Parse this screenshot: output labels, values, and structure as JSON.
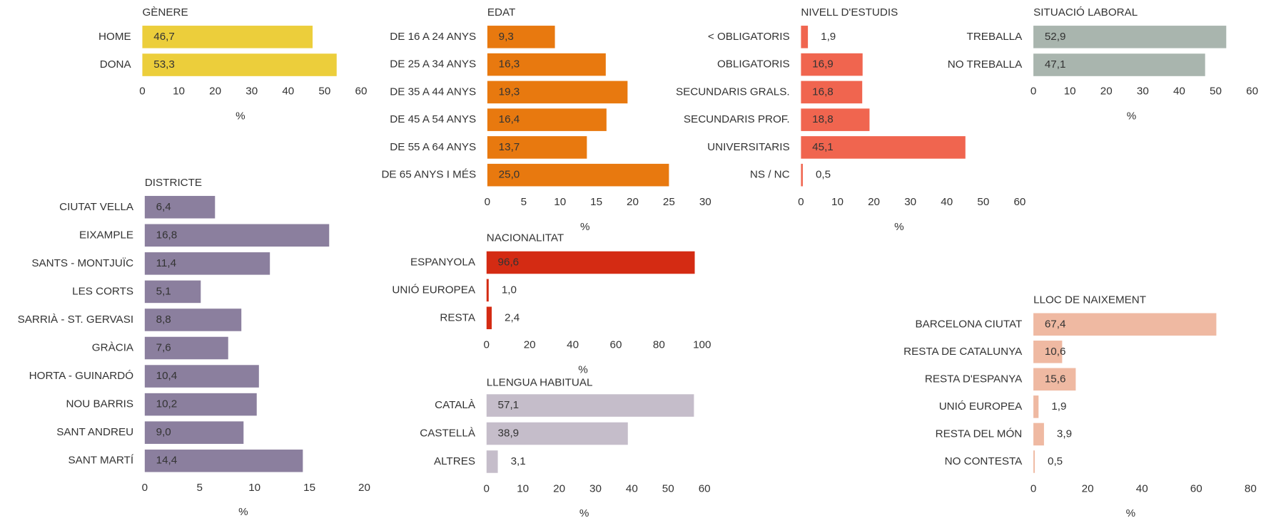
{
  "chart_data": [
    {
      "type": "bar",
      "title": "GÈNERE",
      "categories": [
        "HOME",
        "DONA"
      ],
      "values": [
        46.7,
        53.3
      ],
      "value_labels": [
        "46,7",
        "53,3"
      ],
      "color": "#ecce3b",
      "label_color": "#222222",
      "xlim": [
        0,
        60
      ],
      "xticks": [
        0,
        10,
        20,
        30,
        40,
        50,
        60
      ],
      "xlabel": "%"
    },
    {
      "type": "bar",
      "title": "EDAT",
      "categories": [
        "DE 16 A 24 ANYS",
        "DE 25 A 34 ANYS",
        "DE 35 A 44 ANYS",
        "DE 45 A 54 ANYS",
        "DE 55 A 64 ANYS",
        "DE 65 ANYS I MÉS"
      ],
      "values": [
        9.3,
        16.3,
        19.3,
        16.4,
        13.7,
        25.0
      ],
      "value_labels": [
        "9,3",
        "16,3",
        "19,3",
        "16,4",
        "13,7",
        "25,0"
      ],
      "color": "#e8790f",
      "label_color": "#222222",
      "xlim": [
        0,
        30
      ],
      "xticks": [
        0,
        5,
        10,
        15,
        20,
        25,
        30
      ],
      "xlabel": "%"
    },
    {
      "type": "bar",
      "title": "NIVELL D'ESTUDIS",
      "categories": [
        "< OBLIGATORIS",
        "OBLIGATORIS",
        "SECUNDARIS GRALS.",
        "SECUNDARIS PROF.",
        "UNIVERSITARIS",
        "NS / NC"
      ],
      "values": [
        1.9,
        16.9,
        16.8,
        18.8,
        45.1,
        0.5
      ],
      "value_labels": [
        "1,9",
        "16,9",
        "16,8",
        "18,8",
        "45,1",
        "0,5"
      ],
      "color": "#f0654f",
      "label_color": "#222222",
      "xlim": [
        0,
        60
      ],
      "xticks": [
        0,
        10,
        20,
        30,
        40,
        50,
        60
      ],
      "xlabel": "%"
    },
    {
      "type": "bar",
      "title": "SITUACIÓ LABORAL",
      "categories": [
        "TREBALLA",
        "NO TREBALLA"
      ],
      "values": [
        52.9,
        47.1
      ],
      "value_labels": [
        "52,9",
        "47,1"
      ],
      "color": "#a9b5ae",
      "label_color": "#222222",
      "xlim": [
        0,
        60
      ],
      "xticks": [
        0,
        10,
        20,
        30,
        40,
        50,
        60
      ],
      "xlabel": "%"
    },
    {
      "type": "bar",
      "title": "DISTRICTE",
      "categories": [
        "CIUTAT VELLA",
        "EIXAMPLE",
        "SANTS - MONTJUÏC",
        "LES CORTS",
        "SARRIÀ - ST. GERVASI",
        "GRÀCIA",
        "HORTA - GUINARDÓ",
        "NOU BARRIS",
        "SANT ANDREU",
        "SANT MARTÍ"
      ],
      "values": [
        6.4,
        16.8,
        11.4,
        5.1,
        8.8,
        7.6,
        10.4,
        10.2,
        9.0,
        14.4
      ],
      "value_labels": [
        "6,4",
        "16,8",
        "11,4",
        "5,1",
        "8,8",
        "7,6",
        "10,4",
        "10,2",
        "9,0",
        "14,4"
      ],
      "color": "#8b7f9e",
      "label_color": "#f4f2f6",
      "xlim": [
        0,
        20
      ],
      "xticks": [
        0,
        5,
        10,
        15,
        20
      ],
      "xlabel": "%"
    },
    {
      "type": "bar",
      "title": "NACIONALITAT",
      "categories": [
        "ESPANYOLA",
        "UNIÓ EUROPEA",
        "RESTA"
      ],
      "values": [
        96.6,
        1.0,
        2.4
      ],
      "value_labels": [
        "96,6",
        "1,0",
        "2,4"
      ],
      "color": "#d42b13",
      "label_color": "#ffffff",
      "xlim": [
        0,
        100
      ],
      "xticks": [
        0,
        20,
        40,
        60,
        80,
        100
      ],
      "xlabel": "%"
    },
    {
      "type": "bar",
      "title": "LLENGUA HABITUAL",
      "categories": [
        "CATALÀ",
        "CASTELLÀ",
        "ALTRES"
      ],
      "values": [
        57.1,
        38.9,
        3.1
      ],
      "value_labels": [
        "57,1",
        "38,9",
        "3,1"
      ],
      "color": "#c5bdca",
      "label_color": "#222222",
      "xlim": [
        0,
        60
      ],
      "xticks": [
        0,
        10,
        20,
        30,
        40,
        50,
        60
      ],
      "xlabel": "%"
    },
    {
      "type": "bar",
      "title": "LLOC DE NAIXEMENT",
      "categories": [
        "BARCELONA CIUTAT",
        "RESTA DE CATALUNYA",
        "RESTA D'ESPANYA",
        "UNIÓ EUROPEA",
        "RESTA DEL MÓN",
        "NO CONTESTA"
      ],
      "values": [
        67.4,
        10.6,
        15.6,
        1.9,
        3.9,
        0.5
      ],
      "value_labels": [
        "67,4",
        "10,6",
        "15,6",
        "1,9",
        "3,9",
        "0,5"
      ],
      "color": "#efb9a2",
      "label_color": "#222222",
      "xlim": [
        0,
        80
      ],
      "xticks": [
        0,
        20,
        40,
        60,
        80
      ],
      "xlabel": "%"
    }
  ]
}
